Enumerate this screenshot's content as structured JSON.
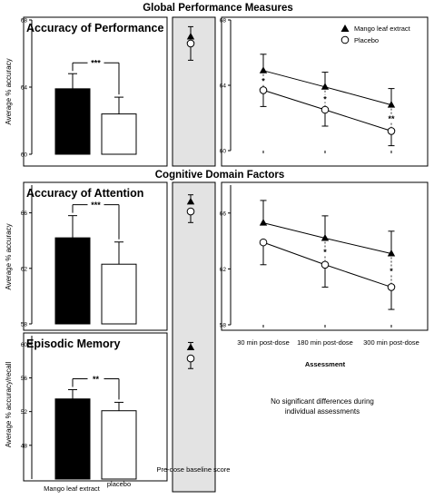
{
  "figure": {
    "title": "Global Performance Measures",
    "subtitle": "Cognitive Domain Factors",
    "note_line1": "No significant differences during",
    "note_line2": "individual assessments"
  },
  "chart_data": [
    {
      "type": "bar",
      "title": "Accuracy of Performance",
      "ylabel": "Average % accuracy",
      "categories": [
        "Mango leaf extract",
        "placebo"
      ],
      "values": [
        63.9,
        62.4
      ],
      "errors": [
        0.9,
        1.0
      ],
      "ylim": [
        60,
        68
      ],
      "yticks": [
        60,
        64,
        68
      ],
      "significance": "***",
      "baseline": {
        "values": [
          67.0,
          66.6
        ],
        "errors": [
          0.6,
          1.0
        ],
        "label": "Pre-dose baseline score"
      }
    },
    {
      "type": "line",
      "x": [
        "30 min post-dose",
        "180 min post-dose",
        "300 min post-dose"
      ],
      "ylim": [
        60,
        68
      ],
      "yticks": [
        60,
        64,
        68
      ],
      "legend_position": "top-right",
      "series": [
        {
          "name": "Mango leaf extract",
          "marker": "triangle",
          "values": [
            64.9,
            63.9,
            62.8
          ],
          "errors": [
            1.0,
            0.9,
            1.0
          ]
        },
        {
          "name": "Placebo",
          "marker": "circle",
          "values": [
            63.7,
            62.5,
            61.2
          ],
          "errors": [
            1.0,
            1.0,
            0.9
          ]
        }
      ],
      "annotations": [
        "*",
        "*",
        "**"
      ]
    },
    {
      "type": "bar",
      "title": "Accuracy of Attention",
      "ylabel": "Average % accuracy",
      "categories": [
        "Mango leaf extract",
        "placebo"
      ],
      "values": [
        64.2,
        62.3
      ],
      "errors": [
        1.6,
        1.6
      ],
      "ylim": [
        58,
        68
      ],
      "yticks": [
        58,
        62,
        66
      ],
      "significance": "***",
      "baseline": {
        "values": [
          66.8,
          66.1
        ],
        "errors": [
          0.5,
          0.8
        ],
        "label": "Pre-dose baseline score"
      }
    },
    {
      "type": "line",
      "x": [
        "30 min post-dose",
        "180 min post-dose",
        "300 min post-dose"
      ],
      "xlabel": "Assessment",
      "ylim": [
        58,
        68
      ],
      "yticks": [
        58,
        62,
        66
      ],
      "series": [
        {
          "name": "Mango leaf extract",
          "marker": "triangle",
          "values": [
            65.3,
            64.2,
            63.1
          ],
          "errors": [
            1.6,
            1.6,
            1.6
          ]
        },
        {
          "name": "Placebo",
          "marker": "circle",
          "values": [
            63.9,
            62.3,
            60.7
          ],
          "errors": [
            1.6,
            1.6,
            1.6
          ]
        }
      ],
      "annotations": [
        "",
        "*",
        "*"
      ]
    },
    {
      "type": "bar",
      "title": "Episodic Memory",
      "ylabel": "Average % accuracy/recall",
      "categories": [
        "Mango leaf extract",
        "placebo"
      ],
      "values": [
        53.5,
        52.1
      ],
      "errors": [
        1.1,
        1.0
      ],
      "ylim": [
        44,
        61
      ],
      "yticks": [
        48,
        52,
        56,
        60
      ],
      "significance": "**",
      "baseline": {
        "values": [
          59.6,
          58.3
        ],
        "errors": [
          0.6,
          1.2
        ],
        "label": "Pre-dose baseline score"
      }
    }
  ],
  "colors": {
    "mango": "#000000",
    "placebo": "#ffffff",
    "baseline_panel": "#e3e3e3"
  }
}
